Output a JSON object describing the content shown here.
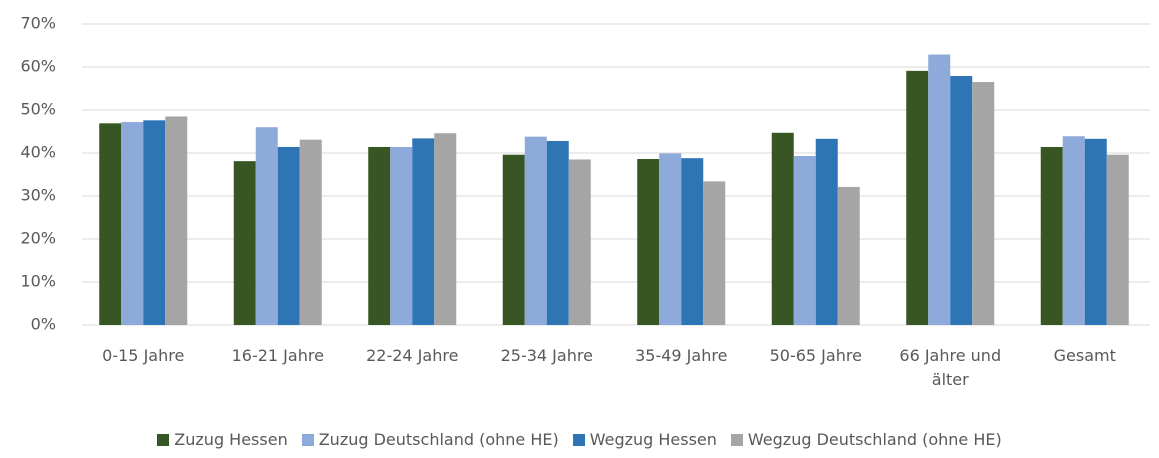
{
  "chart_data": {
    "type": "bar",
    "categories": [
      "0-15 Jahre",
      "16-21 Jahre",
      "22-24 Jahre",
      "25-34 Jahre",
      "35-49 Jahre",
      "50-65 Jahre",
      "66 Jahre und älter",
      "Gesamt"
    ],
    "series": [
      {
        "name": "Zuzug Hessen",
        "color": "#375623",
        "values": [
          46.9,
          38.1,
          41.4,
          39.6,
          38.6,
          44.7,
          59.1,
          41.4
        ]
      },
      {
        "name": "Zuzug Deutschland (ohne HE)",
        "color": "#8eaadb",
        "values": [
          47.2,
          46.0,
          41.4,
          43.8,
          39.9,
          39.3,
          62.9,
          43.9
        ]
      },
      {
        "name": "Wegzug Hessen",
        "color": "#2e75b6",
        "values": [
          47.6,
          41.4,
          43.4,
          42.8,
          38.8,
          43.3,
          57.9,
          43.3
        ]
      },
      {
        "name": "Wegzug Deutschland (ohne HE)",
        "color": "#a5a5a5",
        "values": [
          48.5,
          43.1,
          44.6,
          38.5,
          33.4,
          32.1,
          56.5,
          39.6
        ]
      }
    ],
    "ylim": [
      0,
      70
    ],
    "yticks": [
      {
        "value": 0,
        "label": "0%"
      },
      {
        "value": 10,
        "label": "10%"
      },
      {
        "value": 20,
        "label": "20%"
      },
      {
        "value": 30,
        "label": "30%"
      },
      {
        "value": 40,
        "label": "40%"
      },
      {
        "value": 50,
        "label": "50%"
      },
      {
        "value": 60,
        "label": "60%"
      },
      {
        "value": 70,
        "label": "70%"
      }
    ],
    "grid": true,
    "legend": "bottom"
  }
}
